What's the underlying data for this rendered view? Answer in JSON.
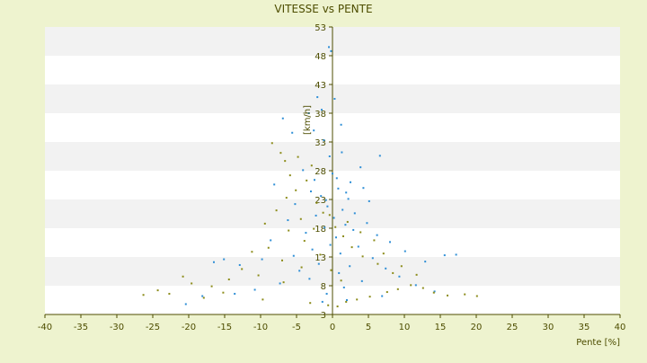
{
  "colors": {
    "page_background": "#eef3cf",
    "plot_band_light": "#ffffff",
    "plot_band_dark": "#f2f2f2",
    "axis": "#4d4d00",
    "text": "#4d4d00",
    "series_1": "#2f8fd6",
    "series_2": "#8c8c1a"
  },
  "chart_data": {
    "type": "scatter",
    "title": "VITESSE vs PENTE",
    "xlabel": "Pente [%]",
    "ylabel": "[km/h]",
    "xlim": [
      -40,
      40
    ],
    "ylim": [
      3,
      53
    ],
    "x_ticks": [
      "-40",
      "-35",
      "-30",
      "-25",
      "-20",
      "-15",
      "-10",
      "-5",
      "0",
      "5",
      "10",
      "15",
      "20",
      "25",
      "30",
      "35",
      "40"
    ],
    "y_ticks": [
      "3",
      "8",
      "13",
      "18",
      "23",
      "28",
      "33",
      "38",
      "43",
      "48",
      "53"
    ],
    "grid": "horizontal alternating bands",
    "legend": "none",
    "series": [
      {
        "color": "#2f8fd6",
        "points": [
          [
            -0.5,
            49.5
          ],
          [
            -0.2,
            48.8
          ],
          [
            0.3,
            40.5
          ],
          [
            -2.1,
            40.8
          ],
          [
            -1.5,
            38.6
          ],
          [
            -3.3,
            38.0
          ],
          [
            -6.9,
            37.1
          ],
          [
            1.2,
            36.0
          ],
          [
            -2.6,
            35.0
          ],
          [
            -5.6,
            34.6
          ],
          [
            6.6,
            30.6
          ],
          [
            -0.4,
            30.5
          ],
          [
            1.3,
            31.2
          ],
          [
            -1.2,
            33.3
          ],
          [
            3.9,
            28.6
          ],
          [
            -4.1,
            28.1
          ],
          [
            2.5,
            26.0
          ],
          [
            -8.1,
            25.6
          ],
          [
            4.3,
            25.0
          ],
          [
            -3.0,
            24.4
          ],
          [
            0.8,
            24.9
          ],
          [
            -1.6,
            23.6
          ],
          [
            2.2,
            23.1
          ],
          [
            5.1,
            22.7
          ],
          [
            -5.2,
            22.2
          ],
          [
            -0.7,
            21.8
          ],
          [
            1.4,
            21.2
          ],
          [
            3.1,
            20.6
          ],
          [
            -2.3,
            20.2
          ],
          [
            0.2,
            19.8
          ],
          [
            -6.2,
            19.4
          ],
          [
            4.8,
            18.9
          ],
          [
            1.8,
            18.6
          ],
          [
            -1.1,
            18.1
          ],
          [
            2.9,
            17.7
          ],
          [
            -3.7,
            17.2
          ],
          [
            6.2,
            16.8
          ],
          [
            0.5,
            16.4
          ],
          [
            -8.6,
            15.9
          ],
          [
            8.0,
            15.6
          ],
          [
            -0.3,
            15.1
          ],
          [
            3.6,
            14.8
          ],
          [
            -2.8,
            14.3
          ],
          [
            10.1,
            14.0
          ],
          [
            1.1,
            13.6
          ],
          [
            -5.4,
            13.2
          ],
          [
            5.6,
            12.8
          ],
          [
            -9.8,
            12.6
          ],
          [
            12.9,
            12.2
          ],
          [
            -1.9,
            11.8
          ],
          [
            2.4,
            11.4
          ],
          [
            7.4,
            11.0
          ],
          [
            -4.6,
            10.6
          ],
          [
            0.9,
            10.2
          ],
          [
            -12.9,
            11.6
          ],
          [
            15.6,
            13.3
          ],
          [
            17.2,
            13.4
          ],
          [
            -15.1,
            12.6
          ],
          [
            -16.5,
            12.1
          ],
          [
            9.3,
            9.6
          ],
          [
            -3.2,
            9.2
          ],
          [
            4.1,
            8.8
          ],
          [
            -7.3,
            8.4
          ],
          [
            11.6,
            8.1
          ],
          [
            1.6,
            7.7
          ],
          [
            -10.8,
            7.3
          ],
          [
            14.2,
            7.0
          ],
          [
            -0.8,
            6.6
          ],
          [
            6.9,
            6.2
          ],
          [
            -13.6,
            6.6
          ],
          [
            -18.1,
            6.2
          ],
          [
            -20.4,
            4.8
          ],
          [
            -1.4,
            5.2
          ],
          [
            2.0,
            5.5
          ],
          [
            0.0,
            27.5
          ],
          [
            0.6,
            26.7
          ],
          [
            -0.9,
            22.9
          ],
          [
            1.9,
            24.2
          ],
          [
            -2.5,
            26.4
          ]
        ]
      },
      {
        "color": "#8c8c1a",
        "points": [
          [
            -8.4,
            32.8
          ],
          [
            -7.2,
            31.1
          ],
          [
            -6.6,
            29.7
          ],
          [
            -5.9,
            27.2
          ],
          [
            -4.8,
            30.4
          ],
          [
            -2.9,
            28.9
          ],
          [
            -3.6,
            26.3
          ],
          [
            -5.1,
            24.6
          ],
          [
            -6.4,
            23.3
          ],
          [
            -7.8,
            21.1
          ],
          [
            -4.4,
            19.6
          ],
          [
            -2.2,
            22.4
          ],
          [
            -1.3,
            20.7
          ],
          [
            -9.4,
            18.8
          ],
          [
            -6.1,
            17.6
          ],
          [
            -3.9,
            15.8
          ],
          [
            -8.9,
            14.6
          ],
          [
            -11.2,
            13.9
          ],
          [
            -7.0,
            12.4
          ],
          [
            -4.3,
            11.2
          ],
          [
            -12.6,
            10.9
          ],
          [
            -10.3,
            9.8
          ],
          [
            -14.4,
            9.1
          ],
          [
            -6.8,
            8.6
          ],
          [
            -16.8,
            7.9
          ],
          [
            -19.6,
            8.4
          ],
          [
            -20.8,
            9.6
          ],
          [
            -22.7,
            6.6
          ],
          [
            -24.3,
            7.2
          ],
          [
            -26.3,
            6.4
          ],
          [
            -17.9,
            5.9
          ],
          [
            -15.2,
            6.8
          ],
          [
            -9.7,
            5.6
          ],
          [
            -3.1,
            5.0
          ],
          [
            -0.6,
            4.6
          ],
          [
            0.7,
            4.4
          ],
          [
            1.9,
            5.2
          ],
          [
            3.4,
            5.6
          ],
          [
            5.2,
            6.1
          ],
          [
            7.6,
            6.9
          ],
          [
            9.1,
            7.4
          ],
          [
            10.9,
            8.1
          ],
          [
            12.6,
            7.6
          ],
          [
            14.1,
            6.8
          ],
          [
            16.0,
            6.3
          ],
          [
            18.4,
            6.5
          ],
          [
            20.1,
            6.2
          ],
          [
            8.4,
            10.2
          ],
          [
            6.3,
            11.8
          ],
          [
            4.2,
            13.1
          ],
          [
            2.7,
            14.7
          ],
          [
            1.5,
            16.6
          ],
          [
            0.4,
            18.2
          ],
          [
            -0.4,
            20.3
          ],
          [
            2.1,
            19.1
          ],
          [
            3.9,
            17.3
          ],
          [
            5.8,
            15.9
          ],
          [
            7.1,
            13.6
          ],
          [
            9.6,
            11.4
          ],
          [
            11.7,
            9.9
          ],
          [
            -2.6,
            17.9
          ],
          [
            -1.7,
            13.4
          ],
          [
            -0.2,
            10.7
          ],
          [
            1.2,
            8.9
          ]
        ]
      }
    ]
  }
}
